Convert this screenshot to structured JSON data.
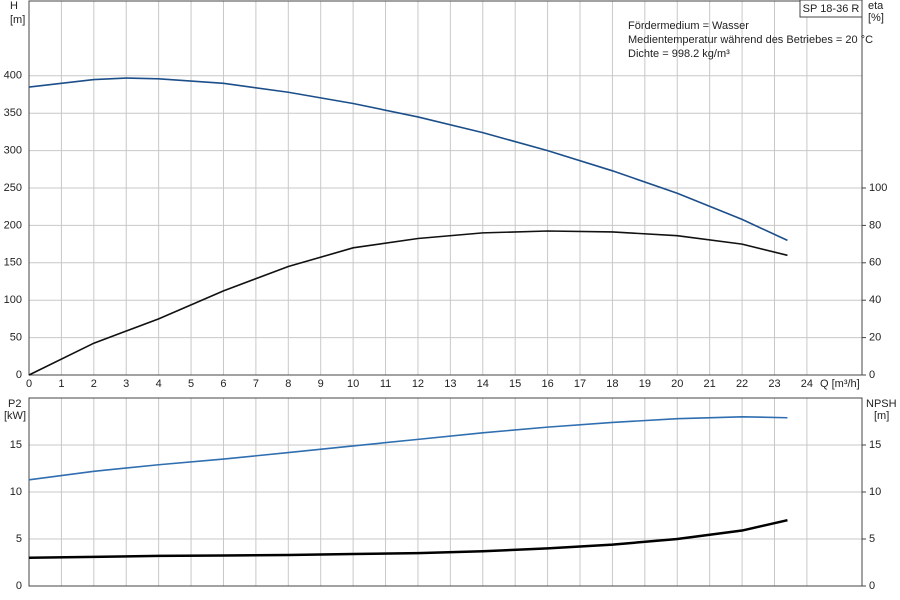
{
  "chart_data": [
    {
      "type": "line",
      "model_label": "SP 18-36 R",
      "annotations": [
        "Fördermedium = Wasser",
        "Medientemperatur während des Betriebes = 20 °C",
        "Dichte = 998.2 kg/m³"
      ],
      "y_label": "H",
      "y_unit": "[m]",
      "y2_label": "eta",
      "y2_unit": "[%]",
      "x_label": "Q [m³/h]",
      "x": [
        0,
        2,
        3,
        4,
        6,
        8,
        10,
        12,
        14,
        16,
        18,
        20,
        22,
        23.4
      ],
      "xlim": [
        0,
        25.7
      ],
      "xticks": [
        0,
        1,
        2,
        3,
        4,
        5,
        6,
        7,
        8,
        9,
        10,
        11,
        12,
        13,
        14,
        15,
        16,
        17,
        18,
        19,
        20,
        21,
        22,
        23,
        24
      ],
      "ylim": [
        0,
        500
      ],
      "yticks": [
        0,
        50,
        100,
        150,
        200,
        250,
        300,
        350,
        400
      ],
      "y2lim": [
        0,
        200
      ],
      "y2ticks": [
        0,
        20,
        40,
        60,
        80,
        100
      ],
      "grid": true,
      "series": [
        {
          "color": "#1c4f8a",
          "values": [
            385,
            395,
            397,
            396,
            390,
            378,
            363,
            345,
            324,
            300,
            273,
            243,
            208,
            180
          ]
        },
        {
          "color": "#111111",
          "axis": "y2",
          "values": [
            0,
            17,
            23.5,
            30,
            45,
            58,
            68,
            73,
            76,
            77,
            76.5,
            74.5,
            70,
            64
          ]
        }
      ]
    },
    {
      "type": "line",
      "y_label": "P2",
      "y_unit": "[kW]",
      "y2_label": "NPSH",
      "y2_unit": "[m]",
      "x": [
        0,
        2,
        4,
        6,
        8,
        10,
        12,
        14,
        16,
        18,
        20,
        22,
        23.4
      ],
      "xlim": [
        0,
        25.7
      ],
      "xticks": [
        0,
        1,
        2,
        3,
        4,
        5,
        6,
        7,
        8,
        9,
        10,
        11,
        12,
        13,
        14,
        15,
        16,
        17,
        18,
        19,
        20,
        21,
        22,
        23,
        24
      ],
      "ylim": [
        0,
        20
      ],
      "yticks": [
        0,
        5,
        10,
        15
      ],
      "y2lim": [
        0,
        20
      ],
      "y2ticks": [
        0,
        5,
        10,
        15
      ],
      "grid": true,
      "series": [
        {
          "color": "#2f6eb0",
          "values": [
            11.3,
            12.2,
            12.9,
            13.5,
            14.2,
            14.9,
            15.6,
            16.3,
            16.9,
            17.4,
            17.8,
            18.0,
            17.9
          ]
        },
        {
          "color": "#000000",
          "axis": "y2",
          "values": [
            3.0,
            3.1,
            3.2,
            3.25,
            3.3,
            3.4,
            3.5,
            3.7,
            4.0,
            4.4,
            5.0,
            5.9,
            7.0
          ]
        }
      ]
    }
  ]
}
